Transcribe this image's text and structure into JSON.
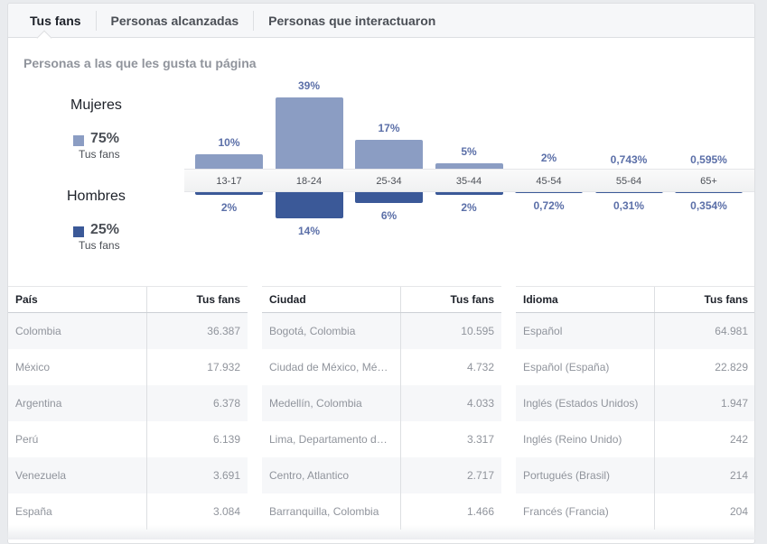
{
  "tabs": [
    "Tus fans",
    "Personas alcanzadas",
    "Personas que interactuaron"
  ],
  "subtitle": "Personas a las que les gusta tu página",
  "gender": {
    "women": {
      "label": "Mujeres",
      "pct": "75%",
      "sub": "Tus fans",
      "color": "#8b9dc3"
    },
    "men": {
      "label": "Hombres",
      "pct": "25%",
      "sub": "Tus fans",
      "color": "#3b5998"
    }
  },
  "chart_data": {
    "type": "bar",
    "categories": [
      "13-17",
      "18-24",
      "25-34",
      "35-44",
      "45-54",
      "55-64",
      "65+"
    ],
    "series": [
      {
        "name": "Mujeres",
        "values": [
          10,
          39,
          17,
          5,
          2,
          0.743,
          0.595
        ],
        "labels": [
          "10%",
          "39%",
          "17%",
          "5%",
          "2%",
          "0,743%",
          "0,595%"
        ],
        "color": "#8b9dc3"
      },
      {
        "name": "Hombres",
        "values": [
          2,
          14,
          6,
          2,
          0.72,
          0.31,
          0.354
        ],
        "labels": [
          "2%",
          "14%",
          "6%",
          "2%",
          "0,72%",
          "0,31%",
          "0,354%"
        ],
        "color": "#3b5998"
      }
    ]
  },
  "tables": [
    {
      "h1": "País",
      "h2": "Tus fans",
      "rows": [
        [
          "Colombia",
          "36.387"
        ],
        [
          "México",
          "17.932"
        ],
        [
          "Argentina",
          "6.378"
        ],
        [
          "Perú",
          "6.139"
        ],
        [
          "Venezuela",
          "3.691"
        ],
        [
          "España",
          "3.084"
        ]
      ]
    },
    {
      "h1": "Ciudad",
      "h2": "Tus fans",
      "rows": [
        [
          "Bogotá, Colombia",
          "10.595"
        ],
        [
          "Ciudad de México, Mé…",
          "4.732"
        ],
        [
          "Medellín, Colombia",
          "4.033"
        ],
        [
          "Lima, Departamento d…",
          "3.317"
        ],
        [
          "Centro, Atlantico",
          "2.717"
        ],
        [
          "Barranquilla, Colombia",
          "1.466"
        ]
      ]
    },
    {
      "h1": "Idioma",
      "h2": "Tus fans",
      "rows": [
        [
          "Español",
          "64.981"
        ],
        [
          "Español (España)",
          "22.829"
        ],
        [
          "Inglés (Estados Unidos)",
          "1.947"
        ],
        [
          "Inglés (Reino Unido)",
          "242"
        ],
        [
          "Portugués (Brasil)",
          "214"
        ],
        [
          "Francés (Francia)",
          "204"
        ]
      ]
    }
  ]
}
